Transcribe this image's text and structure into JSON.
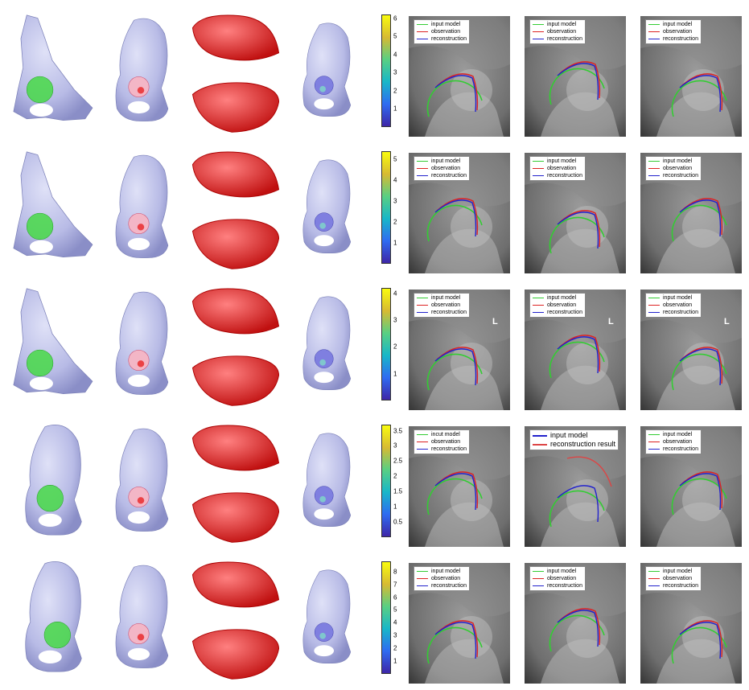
{
  "legend_sets": {
    "standard": [
      "input model",
      "observation",
      "reconstruction"
    ],
    "typo": [
      "incut model",
      "observation",
      "reconstruction"
    ],
    "two": [
      "input model",
      "reconstruction result"
    ]
  },
  "colors": {
    "input_model": "#33cc33",
    "observation": "#dd2222",
    "reconstruction": "#2222cc",
    "reconstruction_result": "#dd4444",
    "bone": "#b8bbe6",
    "cup_red": "#e82424",
    "green_sphere": "#46d946"
  },
  "rows": [
    {
      "colorbar": {
        "ticks": [
          "1",
          "2",
          "3",
          "4",
          "5",
          "6"
        ],
        "max": 6.2
      },
      "xray_legends": [
        "standard",
        "standard",
        "standard"
      ],
      "l_marks": []
    },
    {
      "colorbar": {
        "ticks": [
          "1",
          "2",
          "3",
          "4",
          "5"
        ],
        "max": 5.4
      },
      "xray_legends": [
        "standard",
        "standard",
        "standard"
      ],
      "l_marks": []
    },
    {
      "colorbar": {
        "ticks": [
          "1",
          "2",
          "3",
          "4"
        ],
        "max": 4.2
      },
      "xray_legends": [
        "standard",
        "standard",
        "standard"
      ],
      "l_marks": [
        "L",
        "L",
        "L"
      ]
    },
    {
      "colorbar": {
        "ticks": [
          "0.5",
          "1",
          "1.5",
          "2",
          "2.5",
          "3",
          "3.5"
        ],
        "max": 3.7
      },
      "xray_legends": [
        "typo",
        "two",
        "standard"
      ],
      "l_marks": []
    },
    {
      "colorbar": {
        "ticks": [
          "1",
          "2",
          "3",
          "4",
          "5",
          "6",
          "7",
          "8"
        ],
        "max": 8.8
      },
      "xray_legends": [
        "standard",
        "standard",
        "standard"
      ],
      "l_marks": []
    }
  ]
}
